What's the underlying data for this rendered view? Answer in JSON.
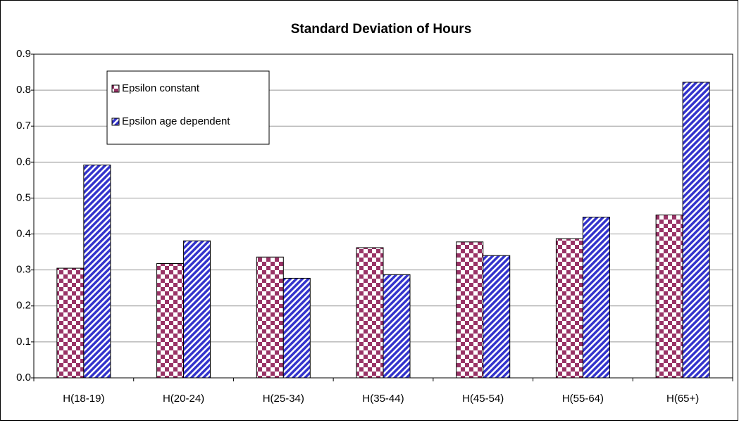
{
  "chart_data": {
    "type": "bar",
    "title": "Standard Deviation of Hours",
    "categories": [
      "H(18-19)",
      "H(20-24)",
      "H(25-34)",
      "H(35-44)",
      "H(45-54)",
      "H(55-64)",
      "H(65+)"
    ],
    "series": [
      {
        "name": "Epsilon constant",
        "color": "#993366",
        "values": [
          0.305,
          0.318,
          0.336,
          0.362,
          0.378,
          0.387,
          0.453
        ]
      },
      {
        "name": "Epsilon age dependent",
        "color": "#3333cc",
        "values": [
          0.592,
          0.381,
          0.277,
          0.287,
          0.34,
          0.447,
          0.822
        ]
      }
    ],
    "ylim": [
      0,
      0.9
    ],
    "yticks": [
      {
        "value": 0,
        "label": "0.0"
      },
      0.1,
      0.2,
      0.3,
      0.4,
      0.5,
      0.6,
      0.7,
      0.8,
      0.9
    ],
    "grid": true,
    "legend": "upper left"
  }
}
